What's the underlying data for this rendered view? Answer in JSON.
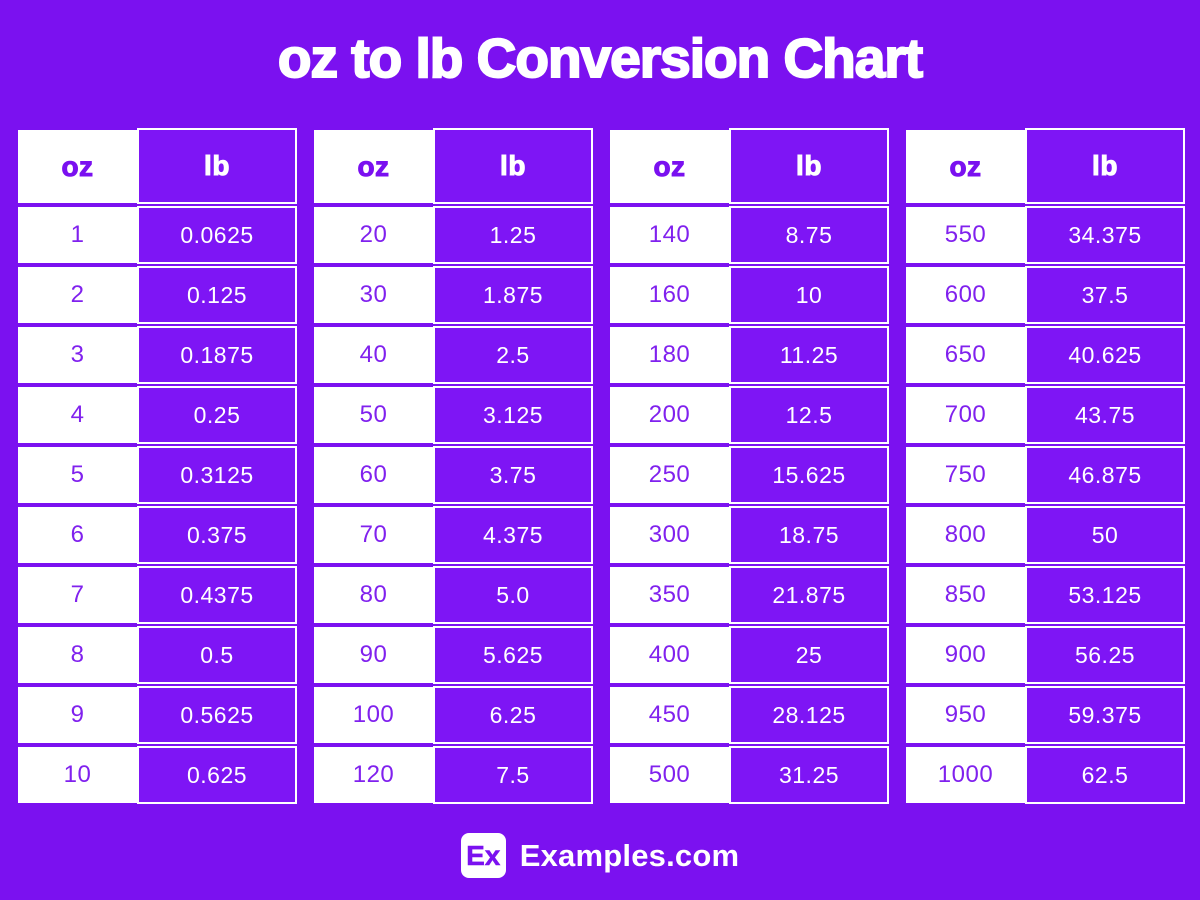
{
  "title": "oz to lb Conversion Chart",
  "colors": {
    "background": "#7b11f0",
    "cell_purple": "#7e15f5",
    "cell_white": "#ffffff",
    "oz_text": "#8021ee",
    "title_text": "#ffffff"
  },
  "footer": {
    "logo_text": "Ex",
    "site_name": "Examples.com"
  },
  "tables": [
    {
      "headers": [
        "oz",
        "lb"
      ],
      "rows": [
        [
          "1",
          "0.0625"
        ],
        [
          "2",
          "0.125"
        ],
        [
          "3",
          "0.1875"
        ],
        [
          "4",
          "0.25"
        ],
        [
          "5",
          "0.3125"
        ],
        [
          "6",
          "0.375"
        ],
        [
          "7",
          "0.4375"
        ],
        [
          "8",
          "0.5"
        ],
        [
          "9",
          "0.5625"
        ],
        [
          "10",
          "0.625"
        ]
      ]
    },
    {
      "headers": [
        "oz",
        "lb"
      ],
      "rows": [
        [
          "20",
          "1.25"
        ],
        [
          "30",
          "1.875"
        ],
        [
          "40",
          "2.5"
        ],
        [
          "50",
          "3.125"
        ],
        [
          "60",
          "3.75"
        ],
        [
          "70",
          "4.375"
        ],
        [
          "80",
          "5.0"
        ],
        [
          "90",
          "5.625"
        ],
        [
          "100",
          "6.25"
        ],
        [
          "120",
          "7.5"
        ]
      ]
    },
    {
      "headers": [
        "oz",
        "lb"
      ],
      "rows": [
        [
          "140",
          "8.75"
        ],
        [
          "160",
          "10"
        ],
        [
          "180",
          "11.25"
        ],
        [
          "200",
          "12.5"
        ],
        [
          "250",
          "15.625"
        ],
        [
          "300",
          "18.75"
        ],
        [
          "350",
          "21.875"
        ],
        [
          "400",
          "25"
        ],
        [
          "450",
          "28.125"
        ],
        [
          "500",
          "31.25"
        ]
      ]
    },
    {
      "headers": [
        "oz",
        "lb"
      ],
      "rows": [
        [
          "550",
          "34.375"
        ],
        [
          "600",
          "37.5"
        ],
        [
          "650",
          "40.625"
        ],
        [
          "700",
          "43.75"
        ],
        [
          "750",
          "46.875"
        ],
        [
          "800",
          "50"
        ],
        [
          "850",
          "53.125"
        ],
        [
          "900",
          "56.25"
        ],
        [
          "950",
          "59.375"
        ],
        [
          "1000",
          "62.5"
        ]
      ]
    }
  ],
  "chart_data": {
    "type": "table",
    "title": "oz to lb Conversion Chart",
    "columns": [
      "oz",
      "lb"
    ],
    "rows": [
      [
        1,
        0.0625
      ],
      [
        2,
        0.125
      ],
      [
        3,
        0.1875
      ],
      [
        4,
        0.25
      ],
      [
        5,
        0.3125
      ],
      [
        6,
        0.375
      ],
      [
        7,
        0.4375
      ],
      [
        8,
        0.5
      ],
      [
        9,
        0.5625
      ],
      [
        10,
        0.625
      ],
      [
        20,
        1.25
      ],
      [
        30,
        1.875
      ],
      [
        40,
        2.5
      ],
      [
        50,
        3.125
      ],
      [
        60,
        3.75
      ],
      [
        70,
        4.375
      ],
      [
        80,
        5.0
      ],
      [
        90,
        5.625
      ],
      [
        100,
        6.25
      ],
      [
        120,
        7.5
      ],
      [
        140,
        8.75
      ],
      [
        160,
        10
      ],
      [
        180,
        11.25
      ],
      [
        200,
        12.5
      ],
      [
        250,
        15.625
      ],
      [
        300,
        18.75
      ],
      [
        350,
        21.875
      ],
      [
        400,
        25
      ],
      [
        450,
        28.125
      ],
      [
        500,
        31.25
      ],
      [
        550,
        34.375
      ],
      [
        600,
        37.5
      ],
      [
        650,
        40.625
      ],
      [
        700,
        43.75
      ],
      [
        750,
        46.875
      ],
      [
        800,
        50
      ],
      [
        850,
        53.125
      ],
      [
        900,
        56.25
      ],
      [
        950,
        59.375
      ],
      [
        1000,
        62.5
      ]
    ],
    "layout": "four side-by-side two-column tables, oz column white with purple text, lb column purple with white border and white text"
  }
}
